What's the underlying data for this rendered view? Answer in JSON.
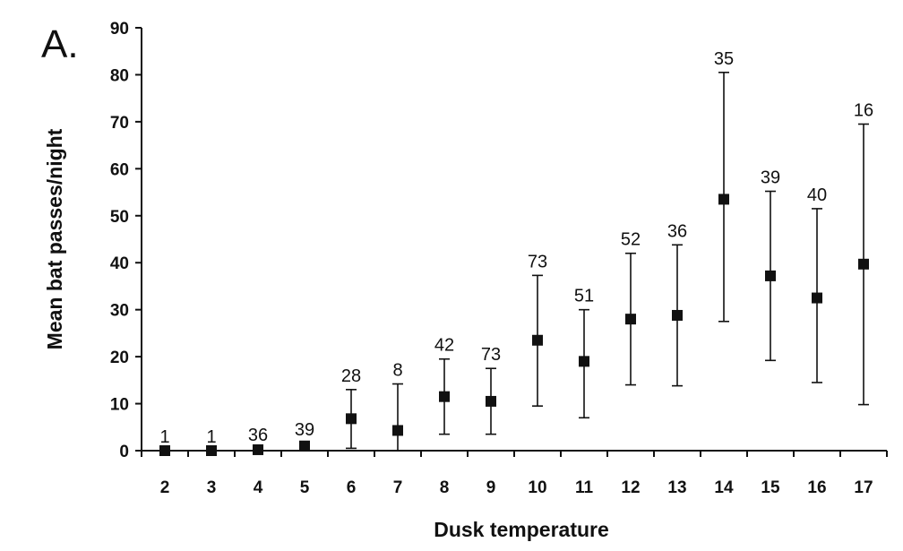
{
  "panel_label": "A.",
  "chart_data": {
    "type": "scatter",
    "title": "",
    "xlabel": "Dusk temperature",
    "ylabel": "Mean bat passes/night",
    "ylim": [
      0,
      90
    ],
    "yticks": [
      0,
      10,
      20,
      30,
      40,
      50,
      60,
      70,
      80,
      90
    ],
    "grid": false,
    "marker": "square",
    "error_bars": true,
    "points": [
      {
        "x": "2",
        "mean": 0,
        "lower": 0,
        "upper": 0,
        "n": "1"
      },
      {
        "x": "3",
        "mean": 0,
        "lower": 0,
        "upper": 0,
        "n": "1"
      },
      {
        "x": "4",
        "mean": 0.2,
        "lower": 0,
        "upper": 0.4,
        "n": "36"
      },
      {
        "x": "5",
        "mean": 1,
        "lower": 0.5,
        "upper": 1.5,
        "n": "39"
      },
      {
        "x": "6",
        "mean": 6.8,
        "lower": 0.5,
        "upper": 13,
        "n": "28"
      },
      {
        "x": "7",
        "mean": 4.3,
        "lower": 0,
        "upper": 14.2,
        "n": "8"
      },
      {
        "x": "8",
        "mean": 11.5,
        "lower": 3.5,
        "upper": 19.5,
        "n": "42"
      },
      {
        "x": "9",
        "mean": 10.5,
        "lower": 3.5,
        "upper": 17.5,
        "n": "73"
      },
      {
        "x": "10",
        "mean": 23.5,
        "lower": 9.5,
        "upper": 37.3,
        "n": "73"
      },
      {
        "x": "11",
        "mean": 19,
        "lower": 7,
        "upper": 30,
        "n": "51"
      },
      {
        "x": "12",
        "mean": 28,
        "lower": 14,
        "upper": 42,
        "n": "52"
      },
      {
        "x": "13",
        "mean": 28.8,
        "lower": 13.8,
        "upper": 43.8,
        "n": "36"
      },
      {
        "x": "14",
        "mean": 53.5,
        "lower": 27.5,
        "upper": 80.5,
        "n": "35"
      },
      {
        "x": "15",
        "mean": 37.2,
        "lower": 19.2,
        "upper": 55.2,
        "n": "39"
      },
      {
        "x": "16",
        "mean": 32.5,
        "lower": 14.5,
        "upper": 51.5,
        "n": "40"
      },
      {
        "x": "17",
        "mean": 39.7,
        "lower": 9.8,
        "upper": 69.5,
        "n": "16"
      }
    ]
  }
}
